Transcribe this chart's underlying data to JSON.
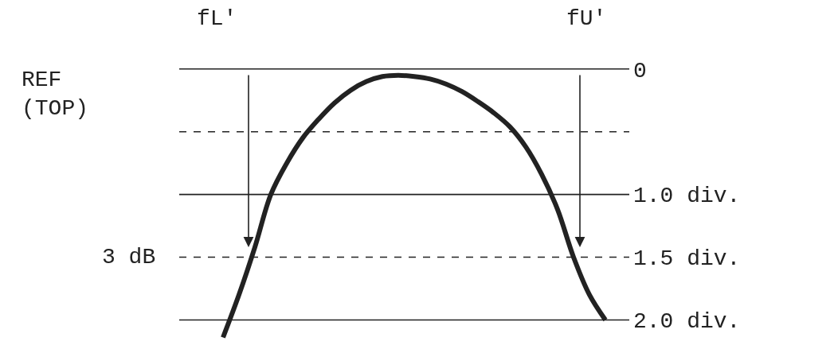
{
  "chart_data": {
    "type": "line",
    "categories": [
      null,
      null,
      null,
      null,
      null,
      null,
      null,
      null,
      null,
      null,
      null,
      null,
      null,
      null,
      null,
      null,
      null,
      null,
      null,
      null,
      null,
      null,
      null,
      null,
      null,
      null,
      null,
      null,
      null
    ],
    "series": [
      {
        "color": "#222222",
        "values": [
          null,
          null,
          null,
          2.14,
          1.8,
          1.42,
          1.0,
          0.75,
          0.55,
          0.4,
          0.27,
          0.17,
          0.1,
          0.06,
          0.05,
          0.06,
          0.08,
          0.12,
          0.18,
          0.26,
          0.35,
          0.46,
          0.62,
          0.84,
          1.12,
          1.5,
          1.8,
          2.0,
          null
        ]
      }
    ],
    "ylim": [
      2.2,
      -0.55
    ],
    "yticks": [
      0,
      {
        "value": 1.0,
        "label": "1.0 div."
      },
      {
        "value": 1.5,
        "label": "1.5 div."
      },
      {
        "value": 2.0,
        "label": "2.0 div."
      }
    ],
    "ref_lines": [
      {
        "axis": "y",
        "value": 0,
        "line_style": "solid",
        "color": "#222222"
      },
      {
        "axis": "y",
        "value": 0.5,
        "line_style": "dashed",
        "color": "#222222"
      },
      {
        "axis": "y",
        "value": 1.0,
        "line_style": "solid",
        "color": "#222222"
      },
      {
        "axis": "y",
        "value": 1.5,
        "line_style": "dashed",
        "color": "#222222"
      },
      {
        "axis": "y",
        "value": 2.0,
        "line_style": "solid",
        "color": "#222222"
      }
    ],
    "annotations": [
      "REF\n(TOP)",
      "fL'",
      "fU'",
      "3 dB"
    ],
    "tick_labels": "y",
    "marker": "none",
    "line_style": "solid"
  }
}
